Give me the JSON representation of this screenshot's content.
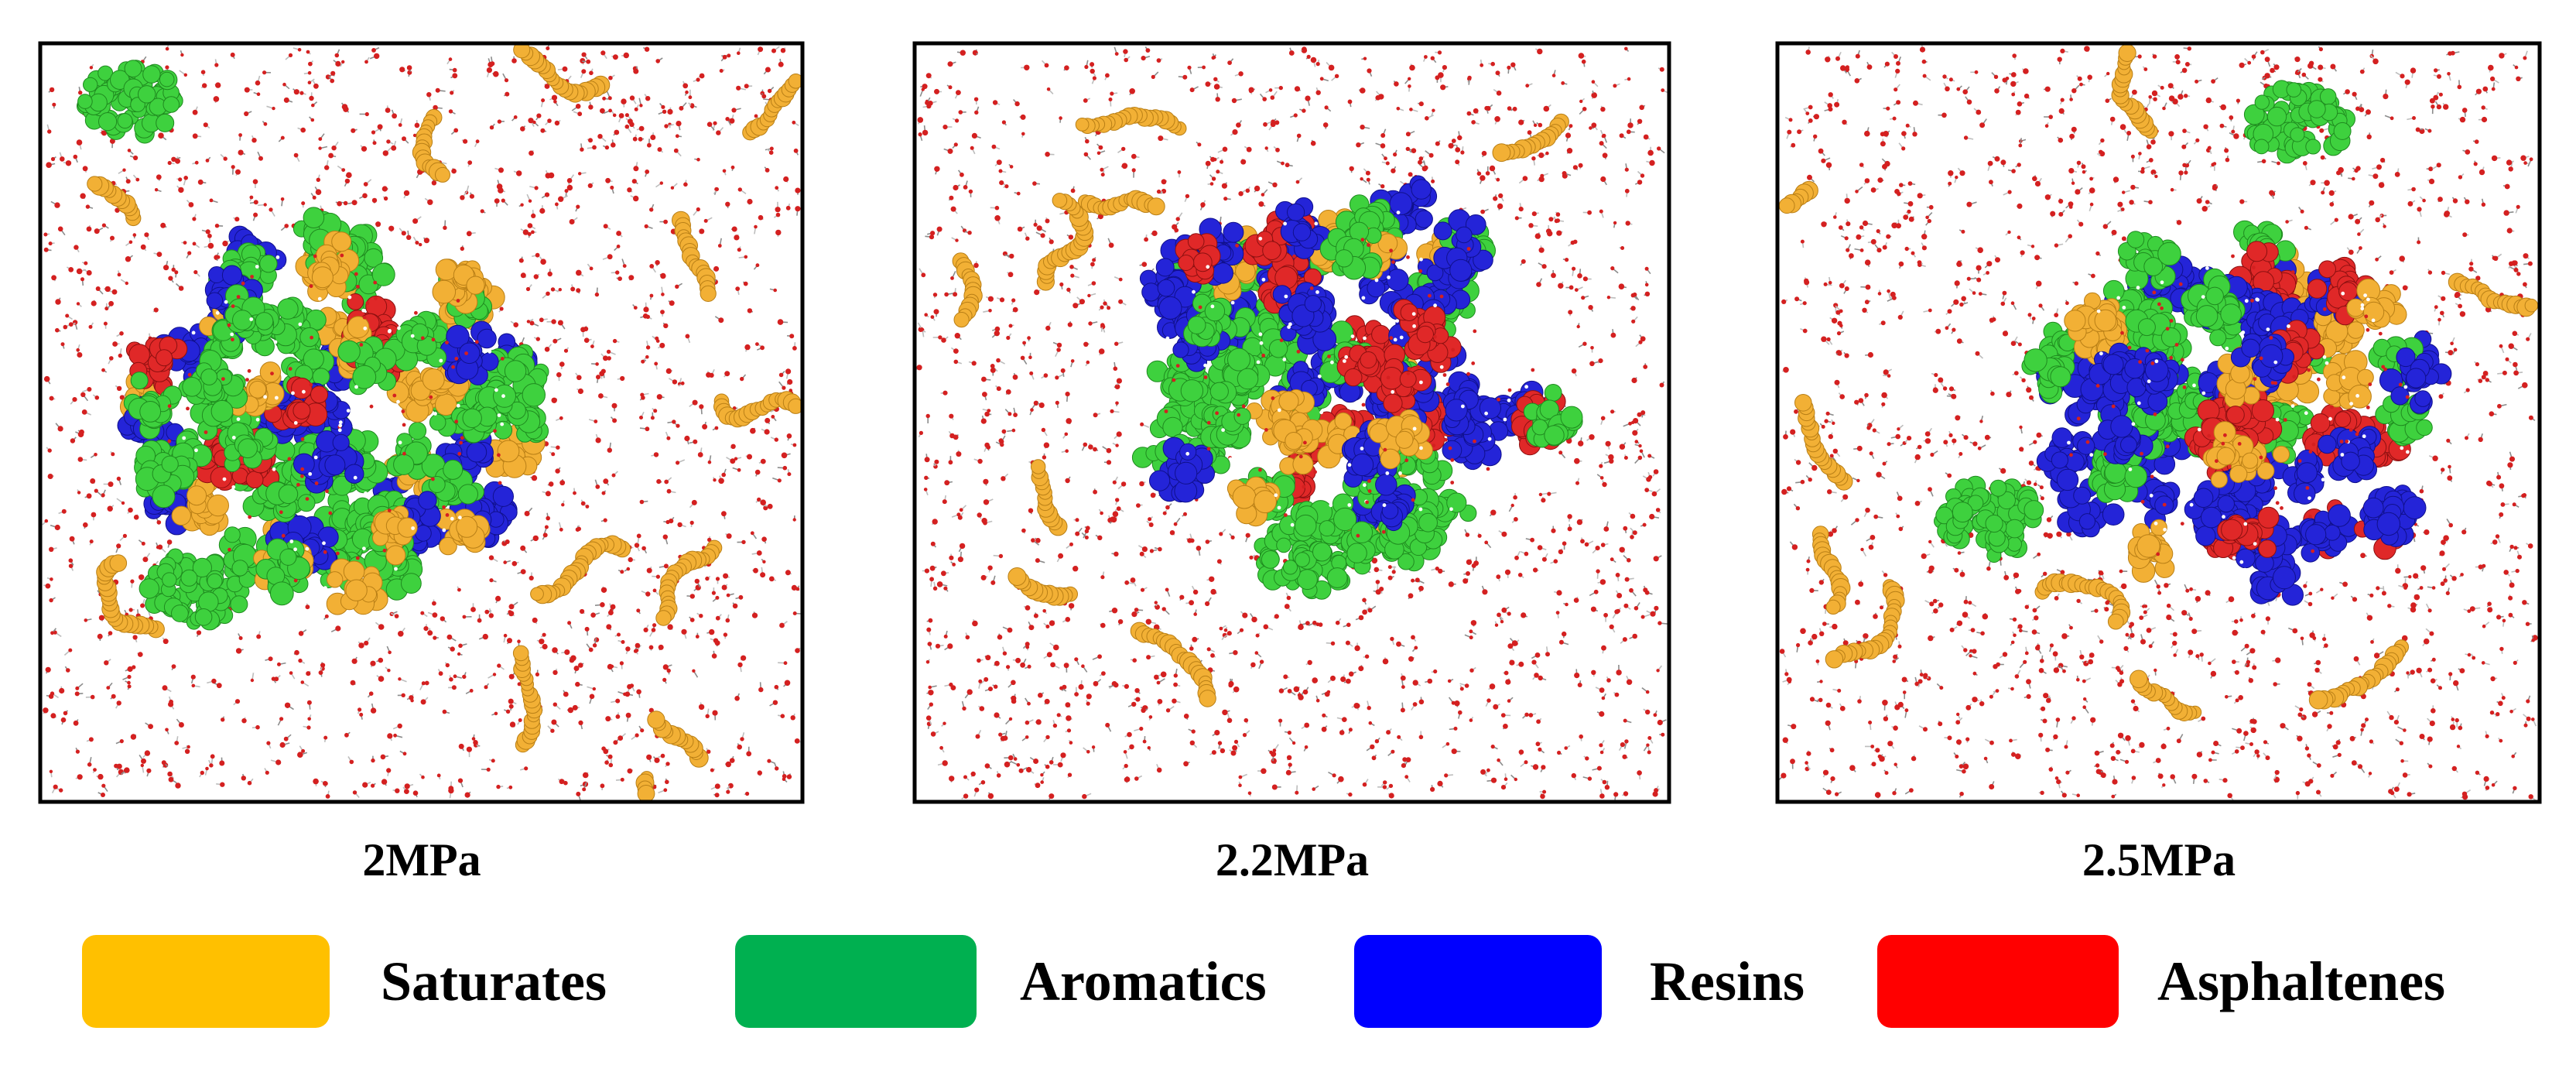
{
  "panels": [
    {
      "label": "2MPa"
    },
    {
      "label": "2.2MPa"
    },
    {
      "label": "2.5MPa"
    }
  ],
  "legend": [
    {
      "name": "Saturates",
      "color": "#FFC000"
    },
    {
      "name": "Aromatics",
      "color": "#00B050"
    },
    {
      "name": "Resins",
      "color": "#0000FF"
    },
    {
      "name": "Asphaltenes",
      "color": "#FF0000"
    }
  ],
  "colors": {
    "saturates_molecule": "#F2B035",
    "aromatics_molecule": "#3ED13E",
    "resins_molecule": "#2424D8",
    "asphaltenes_molecule": "#E02828",
    "solvent_oxygen": "#D42020",
    "solvent_carbon": "#8C8C8C",
    "frame": "#000000"
  }
}
